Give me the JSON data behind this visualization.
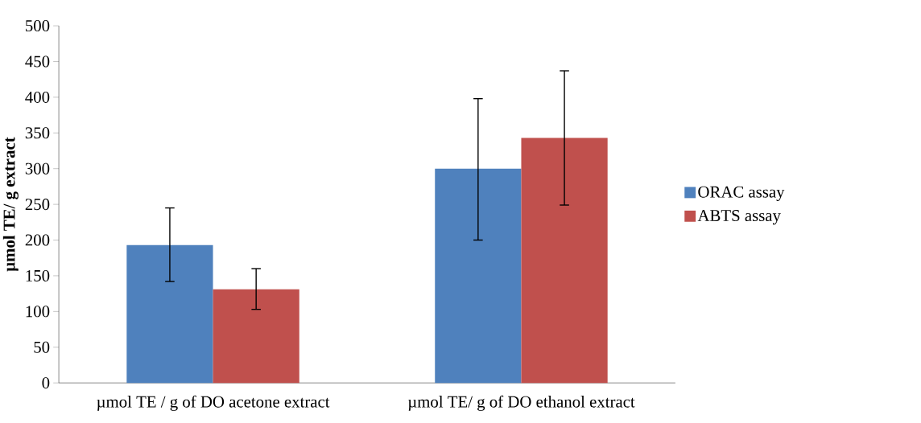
{
  "chart_data": {
    "type": "bar",
    "ylabel": "µmol TE/ g extract",
    "categories": [
      "µmol TE / g of DO acetone extract",
      "µmol TE/ g of DO ethanol extract"
    ],
    "series": [
      {
        "name": "ORAC assay",
        "color": "#4f81bd",
        "values": [
          193,
          300
        ],
        "errors": [
          [
            142,
            245
          ],
          [
            200,
            398
          ]
        ]
      },
      {
        "name": "ABTS assay",
        "color": "#c0504d",
        "values": [
          131,
          343
        ],
        "errors": [
          [
            103,
            160
          ],
          [
            249,
            437
          ]
        ]
      }
    ],
    "ylim": [
      0,
      500
    ],
    "yticks": [
      0,
      50,
      100,
      150,
      200,
      250,
      300,
      350,
      400,
      450,
      500
    ],
    "grid": false,
    "legend": "right"
  }
}
